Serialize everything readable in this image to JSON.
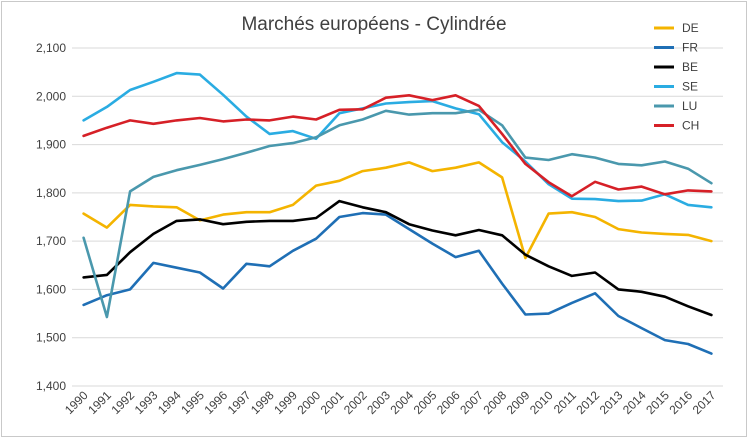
{
  "chart_data": {
    "type": "line",
    "title": "Marchés européens - Cylindrée",
    "xlabel": "",
    "ylabel": "",
    "ylim": [
      1400,
      2100
    ],
    "y_ticks": [
      1400,
      1500,
      1600,
      1700,
      1800,
      1900,
      2000,
      2100
    ],
    "y_tick_labels": [
      "1,400",
      "1,500",
      "1,600",
      "1,700",
      "1,800",
      "1,900",
      "2,000",
      "2,100"
    ],
    "grid": true,
    "legend_position": "right",
    "x": [
      "1990",
      "1991",
      "1992",
      "1993",
      "1994",
      "1995",
      "1996",
      "1997",
      "1998",
      "1999",
      "2000",
      "2001",
      "2002",
      "2003",
      "2004",
      "2005",
      "2006",
      "2007",
      "2008",
      "2009",
      "2010",
      "2011",
      "2012",
      "2013",
      "2014",
      "2015",
      "2016",
      "2017"
    ],
    "series": [
      {
        "name": "DE",
        "color": "#f4b400",
        "values": [
          1757,
          1728,
          1775,
          1772,
          1770,
          1743,
          1755,
          1760,
          1760,
          1775,
          1815,
          1825,
          1845,
          1852,
          1863,
          1845,
          1852,
          1863,
          1832,
          1665,
          1757,
          1760,
          1750,
          1725,
          1718,
          1715,
          1713,
          1700
        ]
      },
      {
        "name": "FR",
        "color": "#1f6fb5",
        "values": [
          1568,
          1588,
          1600,
          1655,
          1645,
          1635,
          1602,
          1653,
          1648,
          1680,
          1705,
          1750,
          1758,
          1755,
          1725,
          1695,
          1667,
          1680,
          1612,
          1548,
          1550,
          1572,
          1592,
          1545,
          1520,
          1495,
          1487,
          1467
        ]
      },
      {
        "name": "BE",
        "color": "#000000",
        "values": [
          1625,
          1630,
          1677,
          1715,
          1742,
          1745,
          1735,
          1740,
          1742,
          1742,
          1748,
          1783,
          1770,
          1760,
          1735,
          1722,
          1712,
          1723,
          1712,
          1672,
          1648,
          1628,
          1635,
          1600,
          1595,
          1585,
          1565,
          1547
        ]
      },
      {
        "name": "SE",
        "color": "#2aace2",
        "values": [
          1950,
          1978,
          2013,
          2030,
          2048,
          2045,
          2003,
          1958,
          1922,
          1928,
          1912,
          1965,
          1975,
          1985,
          1988,
          1990,
          1975,
          1963,
          1905,
          1865,
          1818,
          1788,
          1787,
          1783,
          1784,
          1797,
          1775,
          1770
        ]
      },
      {
        "name": "LU",
        "color": "#4a98ad",
        "values": [
          1707,
          1543,
          1803,
          1833,
          1847,
          1858,
          1870,
          1883,
          1897,
          1903,
          1915,
          1940,
          1952,
          1970,
          1962,
          1965,
          1965,
          1972,
          1940,
          1873,
          1868,
          1880,
          1873,
          1860,
          1857,
          1865,
          1850,
          1820
        ]
      },
      {
        "name": "CH",
        "color": "#d62027",
        "values": [
          1918,
          1935,
          1950,
          1943,
          1950,
          1955,
          1948,
          1952,
          1950,
          1958,
          1952,
          1972,
          1973,
          1997,
          2002,
          1992,
          2002,
          1980,
          1922,
          1860,
          1822,
          1793,
          1823,
          1807,
          1813,
          1797,
          1805,
          1803
        ]
      }
    ]
  }
}
